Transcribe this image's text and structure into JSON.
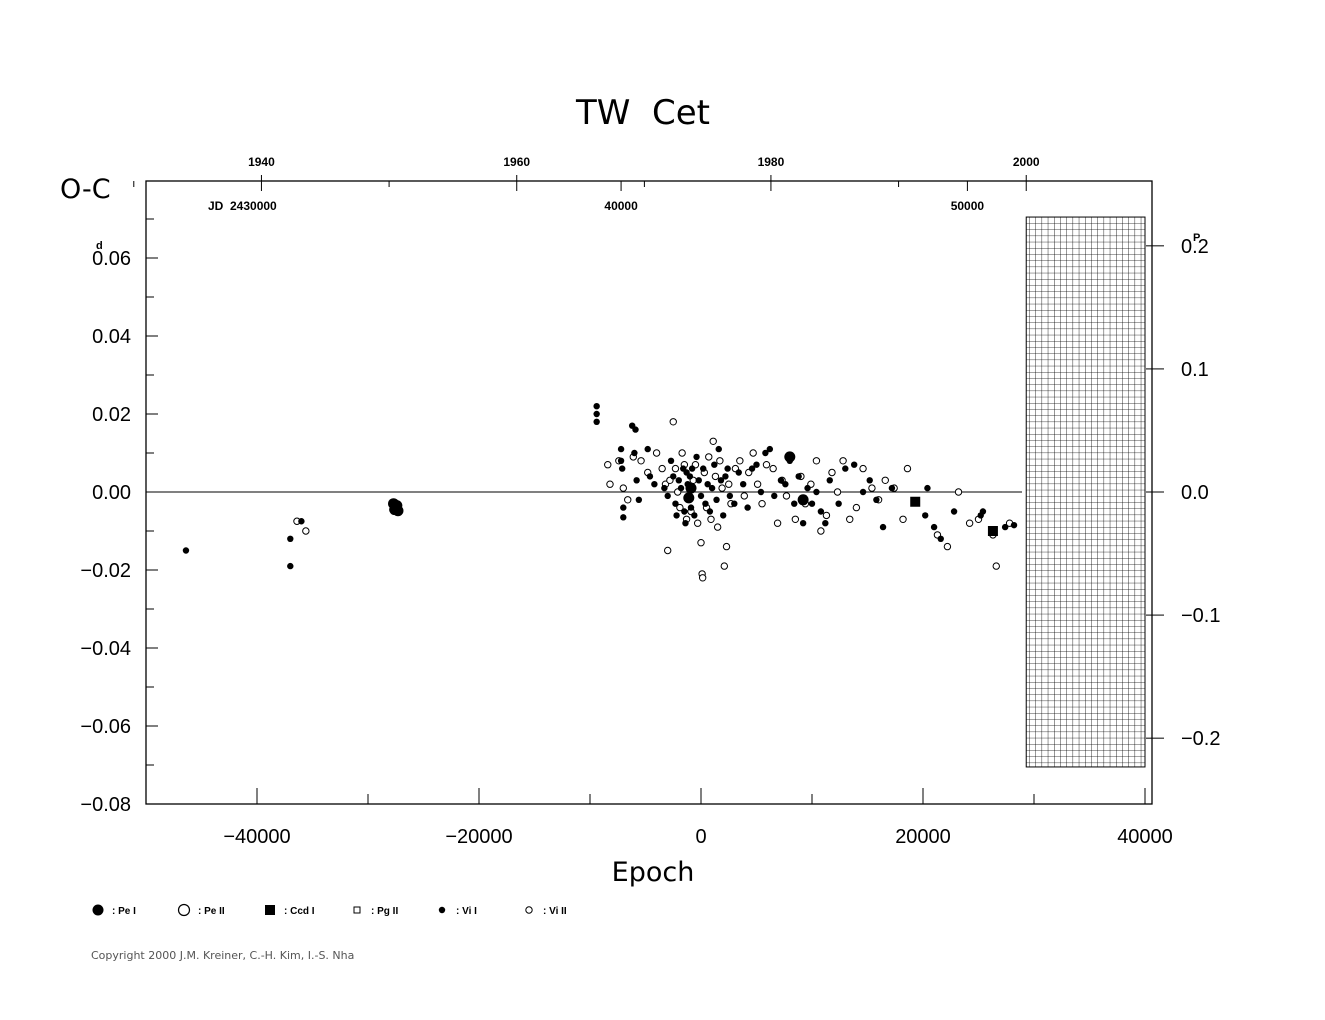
{
  "chart_data": {
    "type": "scatter",
    "title": "TW  Cet",
    "xlabel": "Epoch",
    "ylabel": "O-C",
    "ylabel_unit": "d",
    "right_axis_unit": "P",
    "xlim": [
      -50000,
      40000
    ],
    "ylim": [
      -0.08,
      0.08
    ],
    "grid": false,
    "zero_line": true,
    "x_ticks": [
      "-40000",
      "-20000",
      "0",
      "20000",
      "40000"
    ],
    "y_ticks": [
      "-0.08",
      "-0.06",
      "-0.04",
      "-0.02",
      "0.00",
      "0.02",
      "0.04",
      "0.06"
    ],
    "y_tick_values": [
      -0.08,
      -0.06,
      -0.04,
      -0.02,
      0.0,
      0.02,
      0.04,
      0.06
    ],
    "right_ticks": [
      "-0.2",
      "-0.1",
      "0.0",
      "0.1",
      "0.2"
    ],
    "right_tick_values": [
      -0.2,
      -0.1,
      0.0,
      0.1,
      0.2
    ],
    "right_axis_scale": 0.3156,
    "top_year_ticks": [
      "1940",
      "1960",
      "1980",
      "2000"
    ],
    "top_year_epochs": [
      -39600,
      -16600,
      6300,
      29300
    ],
    "jd_label": "JD  2430000",
    "jd_ticks": [
      "40000",
      "50000"
    ],
    "jd_tick_epochs": [
      -7200,
      24000
    ],
    "hatched_region_x": [
      29300,
      40000
    ],
    "hatched_region_y": [
      -0.0705,
      0.0705
    ],
    "series": [
      {
        "name": ": Pe  I",
        "marker": "big-filled-circle",
        "points": [
          [
            -27700,
            -0.003
          ],
          [
            -27600,
            -0.0045
          ],
          [
            -27500,
            -0.004
          ],
          [
            -27400,
            -0.0035
          ],
          [
            -27300,
            -0.0048
          ],
          [
            -27600,
            -0.0033
          ],
          [
            8000,
            0.009
          ],
          [
            9200,
            -0.002
          ],
          [
            -900,
            0.001
          ],
          [
            -1100,
            -0.0015
          ]
        ]
      },
      {
        "name": ": Pe  II",
        "marker": "big-open-circle",
        "points": []
      },
      {
        "name": ": Ccd  I",
        "marker": "filled-square",
        "points": [
          [
            19300,
            -0.0025
          ],
          [
            26300,
            -0.01
          ]
        ]
      },
      {
        "name": ": Pg  II",
        "marker": "open-square",
        "points": []
      },
      {
        "name": ": Vi  I",
        "marker": "small-filled-circle",
        "points": [
          [
            -46400,
            -0.015
          ],
          [
            -37000,
            -0.012
          ],
          [
            -37000,
            -0.019
          ],
          [
            -36000,
            -0.0075
          ],
          [
            -9400,
            0.022
          ],
          [
            -9400,
            0.02
          ],
          [
            -9400,
            0.018
          ],
          [
            -7200,
            0.011
          ],
          [
            -7200,
            0.008
          ],
          [
            -7100,
            0.006
          ],
          [
            -7000,
            -0.004
          ],
          [
            -7000,
            -0.0065
          ],
          [
            -6200,
            0.017
          ],
          [
            -6000,
            0.01
          ],
          [
            -5900,
            0.016
          ],
          [
            -5800,
            0.003
          ],
          [
            -5600,
            -0.002
          ],
          [
            -4800,
            0.011
          ],
          [
            -4600,
            0.004
          ],
          [
            -4200,
            0.002
          ],
          [
            -3300,
            0.001
          ],
          [
            -3000,
            -0.001
          ],
          [
            -2700,
            0.008
          ],
          [
            -2500,
            0.004
          ],
          [
            -2300,
            -0.003
          ],
          [
            -2200,
            -0.006
          ],
          [
            -2000,
            0.003
          ],
          [
            -1800,
            0.001
          ],
          [
            -1600,
            0.006
          ],
          [
            -1500,
            -0.005
          ],
          [
            -1400,
            -0.008
          ],
          [
            -1300,
            0.005
          ],
          [
            -1200,
            0.002
          ],
          [
            -1100,
            -0.002
          ],
          [
            -1000,
            0.004
          ],
          [
            -900,
            -0.004
          ],
          [
            -800,
            0.006
          ],
          [
            -600,
            -0.006
          ],
          [
            -400,
            0.009
          ],
          [
            -200,
            0.003
          ],
          [
            0,
            -0.001
          ],
          [
            200,
            0.006
          ],
          [
            400,
            -0.003
          ],
          [
            600,
            0.002
          ],
          [
            800,
            -0.005
          ],
          [
            1000,
            0.001
          ],
          [
            1200,
            0.007
          ],
          [
            1400,
            -0.002
          ],
          [
            1600,
            0.011
          ],
          [
            1800,
            0.003
          ],
          [
            2000,
            -0.006
          ],
          [
            2200,
            0.004
          ],
          [
            2400,
            0.006
          ],
          [
            2600,
            -0.001
          ],
          [
            3000,
            -0.003
          ],
          [
            3400,
            0.005
          ],
          [
            3800,
            0.002
          ],
          [
            4200,
            -0.004
          ],
          [
            4600,
            0.006
          ],
          [
            5000,
            0.007
          ],
          [
            5400,
            0.0
          ],
          [
            5800,
            0.01
          ],
          [
            6200,
            0.011
          ],
          [
            6600,
            -0.001
          ],
          [
            7200,
            0.003
          ],
          [
            7600,
            0.002
          ],
          [
            8000,
            0.008
          ],
          [
            8400,
            -0.003
          ],
          [
            8800,
            0.004
          ],
          [
            9200,
            -0.008
          ],
          [
            9600,
            0.001
          ],
          [
            10000,
            -0.003
          ],
          [
            10400,
            0.0
          ],
          [
            10800,
            -0.005
          ],
          [
            11200,
            -0.008
          ],
          [
            11600,
            0.003
          ],
          [
            12400,
            -0.003
          ],
          [
            13000,
            0.006
          ],
          [
            13800,
            0.007
          ],
          [
            14600,
            0.0
          ],
          [
            15200,
            0.003
          ],
          [
            15800,
            -0.002
          ],
          [
            16400,
            -0.009
          ],
          [
            17200,
            0.001
          ],
          [
            20400,
            0.001
          ],
          [
            20200,
            -0.006
          ],
          [
            21000,
            -0.009
          ],
          [
            21600,
            -0.012
          ],
          [
            22800,
            -0.005
          ],
          [
            25200,
            -0.006
          ],
          [
            25400,
            -0.005
          ],
          [
            27400,
            -0.009
          ],
          [
            28200,
            -0.0085
          ]
        ]
      },
      {
        "name": ": Vi  II",
        "marker": "small-open-circle",
        "points": [
          [
            -36400,
            -0.0075
          ],
          [
            -35600,
            -0.01
          ],
          [
            -8400,
            0.007
          ],
          [
            -8200,
            0.002
          ],
          [
            -7400,
            0.008
          ],
          [
            -7000,
            0.001
          ],
          [
            -6600,
            -0.002
          ],
          [
            -6100,
            0.009
          ],
          [
            -5400,
            0.008
          ],
          [
            -4800,
            0.005
          ],
          [
            -4000,
            0.01
          ],
          [
            -3500,
            0.006
          ],
          [
            -3200,
            0.002
          ],
          [
            -3000,
            -0.015
          ],
          [
            -2800,
            0.003
          ],
          [
            -2500,
            0.018
          ],
          [
            -2300,
            0.006
          ],
          [
            -2100,
            0.0
          ],
          [
            -1900,
            -0.004
          ],
          [
            -1700,
            0.01
          ],
          [
            -1500,
            0.007
          ],
          [
            -1300,
            -0.007
          ],
          [
            -900,
            -0.005
          ],
          [
            -700,
            0.003
          ],
          [
            -500,
            0.007
          ],
          [
            -300,
            -0.008
          ],
          [
            0,
            -0.013
          ],
          [
            100,
            -0.021
          ],
          [
            150,
            -0.022
          ],
          [
            300,
            0.005
          ],
          [
            500,
            -0.004
          ],
          [
            700,
            0.009
          ],
          [
            900,
            -0.007
          ],
          [
            1100,
            0.013
          ],
          [
            1300,
            0.004
          ],
          [
            1500,
            -0.009
          ],
          [
            1700,
            0.008
          ],
          [
            1900,
            0.001
          ],
          [
            2100,
            -0.019
          ],
          [
            2300,
            -0.014
          ],
          [
            2500,
            0.002
          ],
          [
            2700,
            -0.003
          ],
          [
            3100,
            0.006
          ],
          [
            3500,
            0.008
          ],
          [
            3900,
            -0.001
          ],
          [
            4300,
            0.005
          ],
          [
            4700,
            0.01
          ],
          [
            5100,
            0.002
          ],
          [
            5500,
            -0.003
          ],
          [
            5900,
            0.007
          ],
          [
            6500,
            0.006
          ],
          [
            6900,
            -0.008
          ],
          [
            7300,
            0.003
          ],
          [
            7700,
            -0.001
          ],
          [
            8100,
            0.009
          ],
          [
            8500,
            -0.007
          ],
          [
            9000,
            0.004
          ],
          [
            9400,
            -0.003
          ],
          [
            9900,
            0.002
          ],
          [
            10400,
            0.008
          ],
          [
            10800,
            -0.01
          ],
          [
            11300,
            -0.006
          ],
          [
            11800,
            0.005
          ],
          [
            12300,
            0.0
          ],
          [
            12800,
            0.008
          ],
          [
            13400,
            -0.007
          ],
          [
            14000,
            -0.004
          ],
          [
            14600,
            0.006
          ],
          [
            15400,
            0.001
          ],
          [
            16000,
            -0.002
          ],
          [
            16600,
            0.003
          ],
          [
            17400,
            0.001
          ],
          [
            18200,
            -0.007
          ],
          [
            18600,
            0.006
          ],
          [
            21300,
            -0.011
          ],
          [
            22200,
            -0.014
          ],
          [
            23200,
            0.0
          ],
          [
            24200,
            -0.008
          ],
          [
            25000,
            -0.007
          ],
          [
            26600,
            -0.019
          ],
          [
            26300,
            -0.011
          ],
          [
            27800,
            -0.008
          ]
        ]
      }
    ]
  },
  "copyright": "Copyright 2000 J.M. Kreiner, C.-H. Kim, I.-S. Nha"
}
